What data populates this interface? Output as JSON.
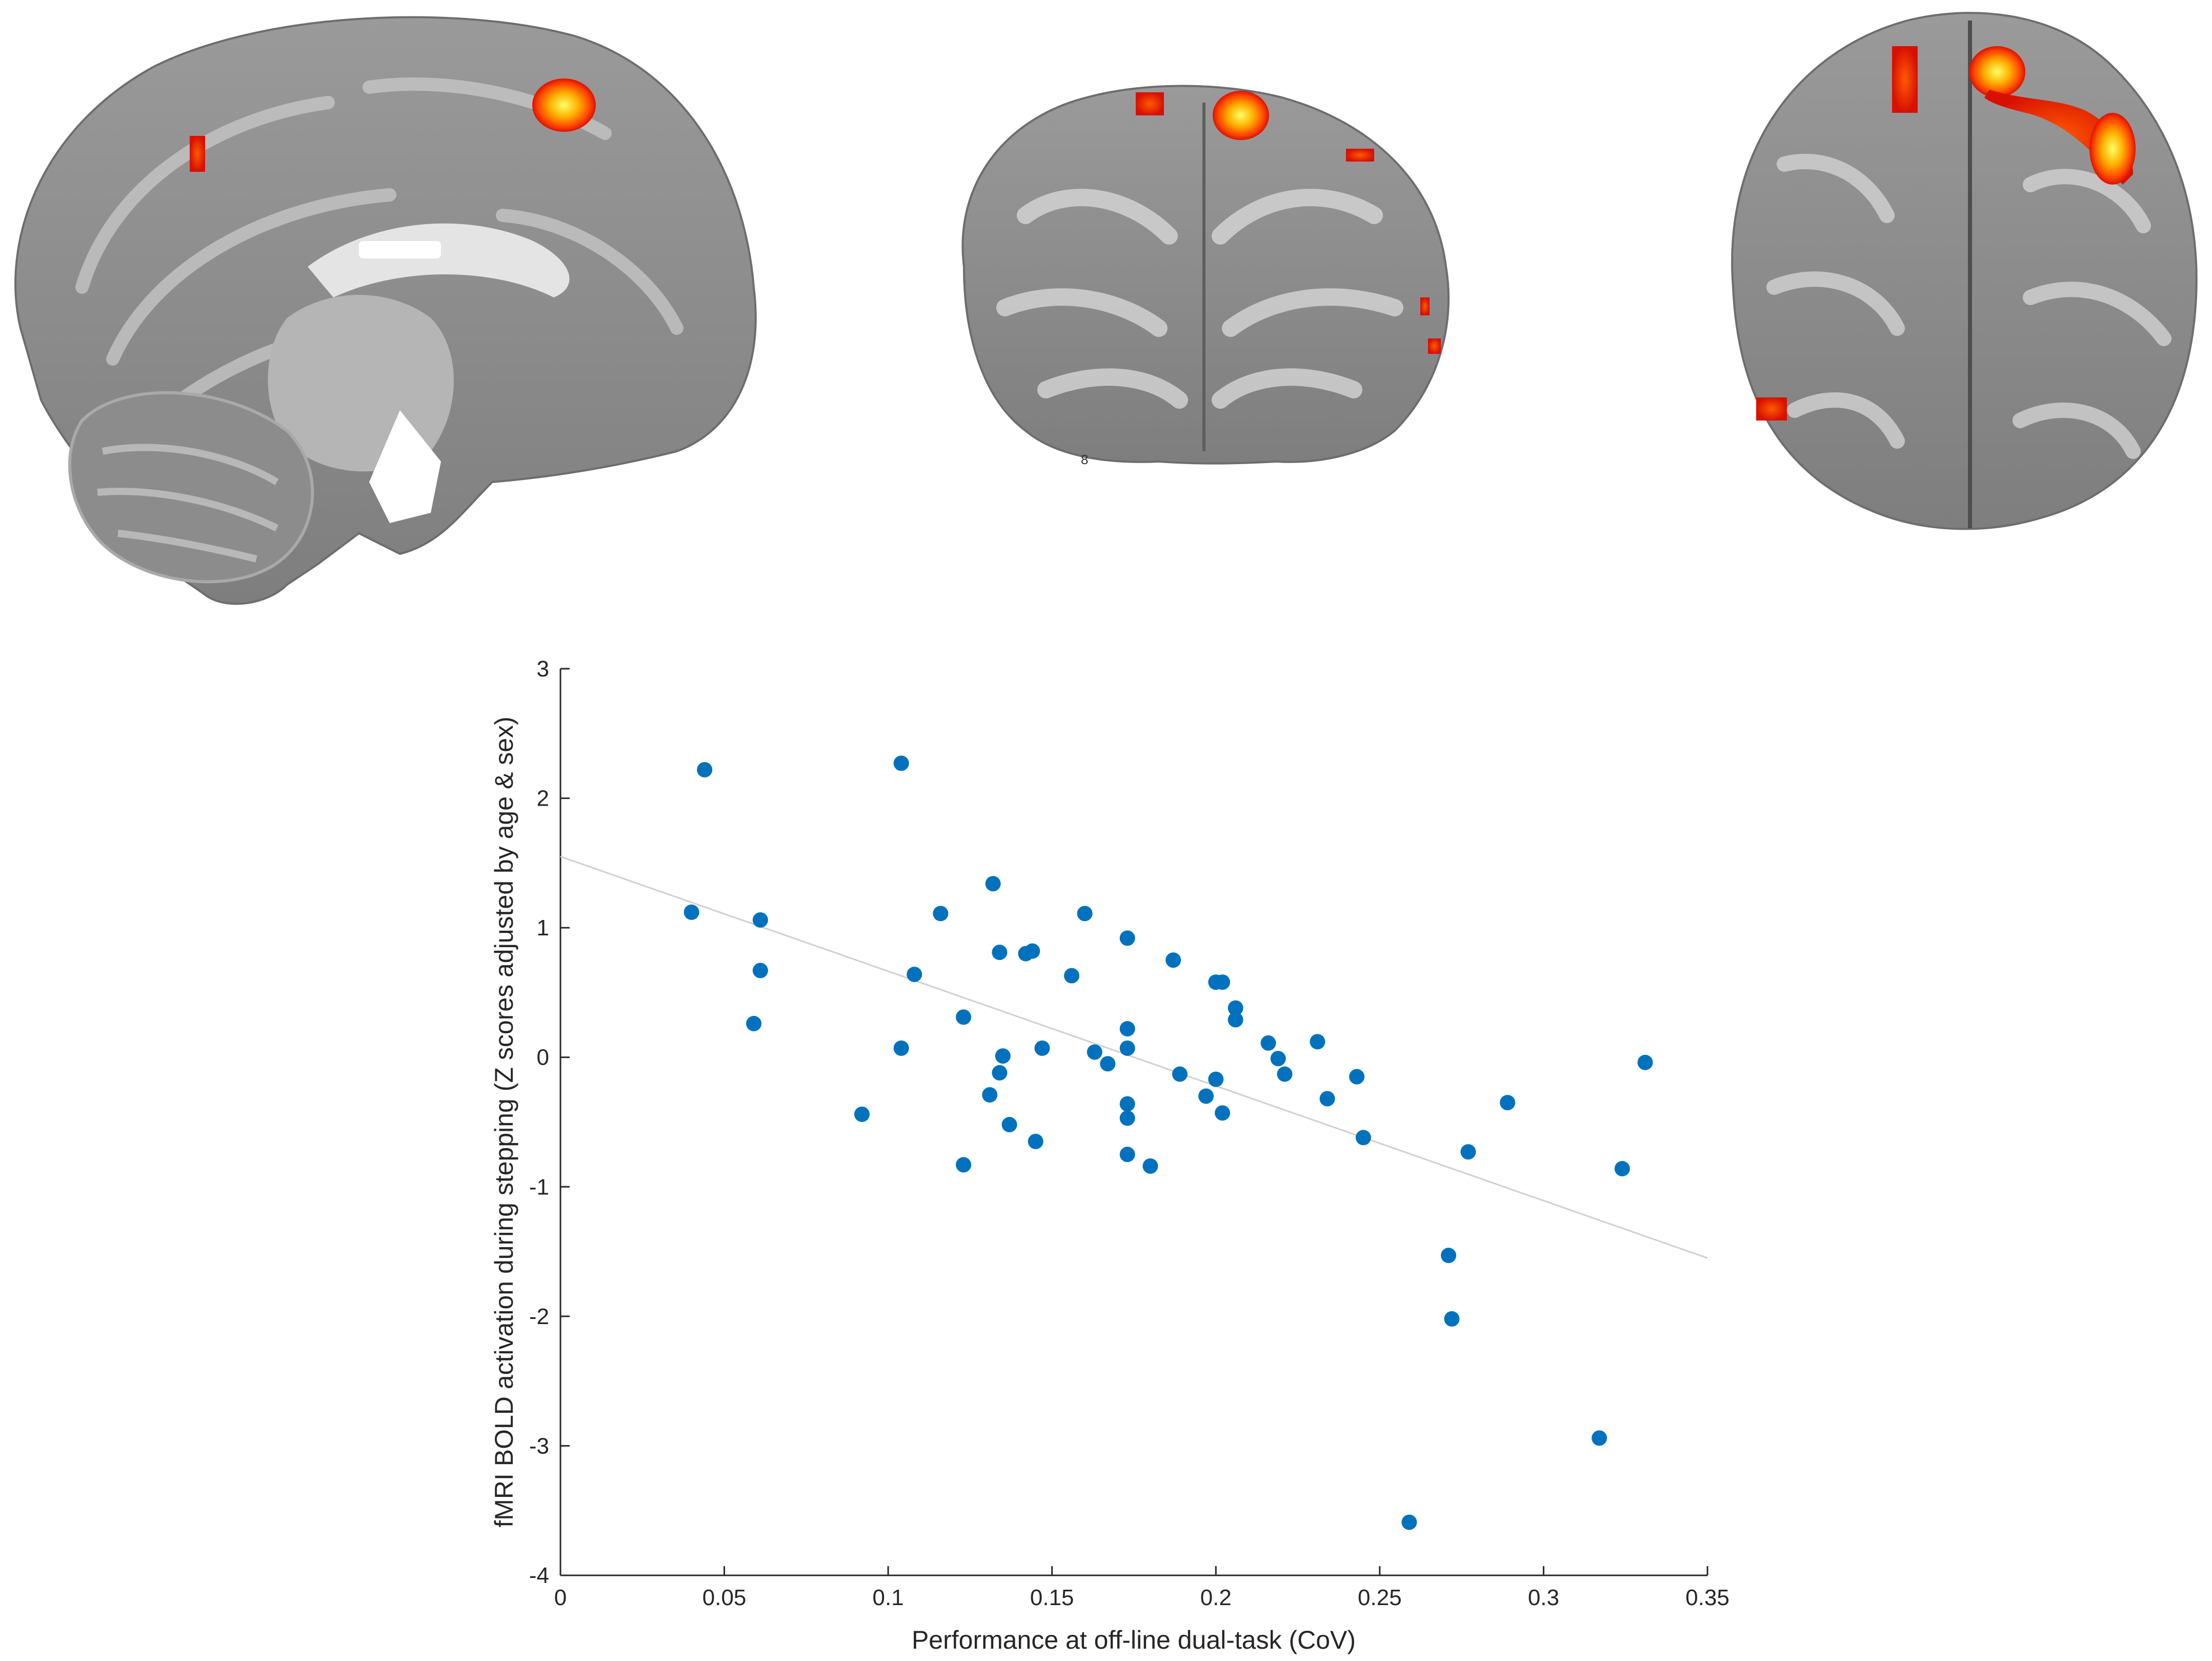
{
  "brain_panels": {
    "coronal_slice_tag": "8"
  },
  "chart_data": {
    "type": "scatter",
    "title": "",
    "xlabel": "Performance at off-line dual-task (CoV)",
    "ylabel": "fMRI BOLD activation during stepping (Z scores adjusted by age & sex)",
    "xlim": [
      0,
      0.35
    ],
    "ylim": [
      -4,
      3
    ],
    "xticks": [
      0,
      0.05,
      0.1,
      0.15,
      0.2,
      0.25,
      0.3,
      0.35
    ],
    "xtick_labels": [
      "0",
      "0.05",
      "0.1",
      "0.15",
      "0.2",
      "0.25",
      "0.3",
      "0.35"
    ],
    "yticks": [
      -4,
      -3,
      -2,
      -1,
      0,
      1,
      2,
      3
    ],
    "ytick_labels": [
      "-4",
      "-3",
      "-2",
      "-1",
      "0",
      "1",
      "2",
      "3"
    ],
    "grid": false,
    "marker_color": "#0072BD",
    "fit_line_color": "#d0d0d0",
    "fit_line": {
      "x": [
        0,
        0.35
      ],
      "y": [
        1.55,
        -1.55
      ]
    },
    "points": [
      [
        0.04,
        1.12
      ],
      [
        0.044,
        2.22
      ],
      [
        0.059,
        0.26
      ],
      [
        0.061,
        1.06
      ],
      [
        0.061,
        0.67
      ],
      [
        0.092,
        -0.44
      ],
      [
        0.104,
        2.27
      ],
      [
        0.104,
        0.07
      ],
      [
        0.108,
        0.64
      ],
      [
        0.116,
        1.11
      ],
      [
        0.123,
        0.31
      ],
      [
        0.123,
        -0.83
      ],
      [
        0.131,
        -0.29
      ],
      [
        0.132,
        1.34
      ],
      [
        0.134,
        0.81
      ],
      [
        0.134,
        -0.12
      ],
      [
        0.135,
        0.01
      ],
      [
        0.137,
        -0.52
      ],
      [
        0.142,
        0.8
      ],
      [
        0.144,
        0.82
      ],
      [
        0.145,
        -0.65
      ],
      [
        0.147,
        0.07
      ],
      [
        0.156,
        0.63
      ],
      [
        0.16,
        1.11
      ],
      [
        0.163,
        0.04
      ],
      [
        0.167,
        -0.05
      ],
      [
        0.173,
        0.92
      ],
      [
        0.173,
        0.22
      ],
      [
        0.173,
        0.07
      ],
      [
        0.173,
        -0.36
      ],
      [
        0.173,
        -0.47
      ],
      [
        0.173,
        -0.75
      ],
      [
        0.18,
        -0.84
      ],
      [
        0.187,
        0.75
      ],
      [
        0.189,
        -0.13
      ],
      [
        0.197,
        -0.3
      ],
      [
        0.2,
        0.58
      ],
      [
        0.2,
        -0.17
      ],
      [
        0.202,
        0.58
      ],
      [
        0.202,
        -0.43
      ],
      [
        0.206,
        0.38
      ],
      [
        0.206,
        0.29
      ],
      [
        0.216,
        0.11
      ],
      [
        0.219,
        -0.01
      ],
      [
        0.221,
        -0.13
      ],
      [
        0.231,
        0.12
      ],
      [
        0.234,
        -0.32
      ],
      [
        0.243,
        -0.15
      ],
      [
        0.245,
        -0.62
      ],
      [
        0.259,
        -3.59
      ],
      [
        0.271,
        -1.53
      ],
      [
        0.272,
        -2.02
      ],
      [
        0.277,
        -0.73
      ],
      [
        0.289,
        -0.35
      ],
      [
        0.317,
        -2.94
      ],
      [
        0.324,
        -0.86
      ],
      [
        0.331,
        -0.04
      ]
    ]
  }
}
